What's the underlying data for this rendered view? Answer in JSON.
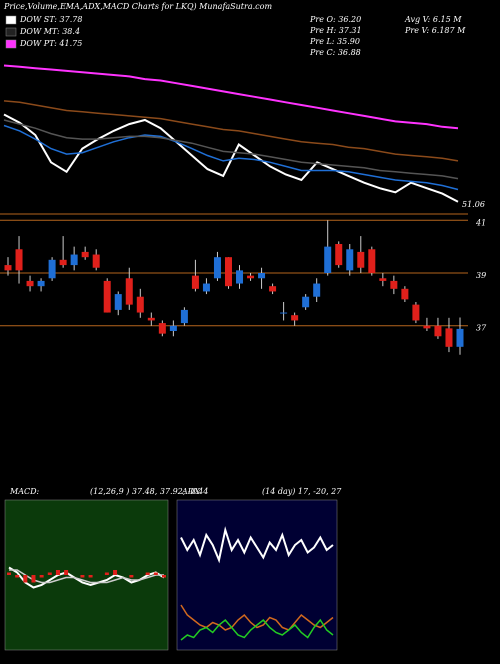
{
  "header": {
    "title": "Price,Volume,EMA,ADX,MACD Charts for LKQ) MunafaSutra.com",
    "legend": [
      {
        "text": "DOW ST: 37.78",
        "color": "#ffffff"
      },
      {
        "text": "DOW MT: 38.4",
        "color": "#222222"
      },
      {
        "text": "DOW PT: 41.75",
        "color": "#ff33ff"
      }
    ],
    "info": [
      "Pre O: 36.20",
      "Pre H: 37.31",
      "Pre L: 35.90",
      "Pre C: 36.88",
      "Avg V: 6.15 M",
      "Pre V: 6.187 M"
    ]
  },
  "chart_data": [
    {
      "type": "line",
      "ylim": [
        36,
        47
      ],
      "annotation": "51.06",
      "series": [
        {
          "name": "Price",
          "color": "#ffffff",
          "values": [
            43.0,
            42.4,
            41.5,
            39.5,
            38.8,
            40.5,
            41.2,
            41.8,
            42.3,
            42.6,
            42.0,
            41.0,
            40.0,
            39.0,
            38.5,
            40.8,
            40.0,
            39.2,
            38.6,
            38.2,
            39.5,
            39.0,
            38.5,
            38.0,
            37.6,
            37.3,
            38.0,
            37.6,
            37.2,
            36.6
          ]
        },
        {
          "name": "EMA short",
          "color": "#1f6fd6",
          "values": [
            42.2,
            41.8,
            41.2,
            40.5,
            40.1,
            40.2,
            40.6,
            41.0,
            41.3,
            41.5,
            41.4,
            41.0,
            40.5,
            40.0,
            39.6,
            39.8,
            39.7,
            39.5,
            39.2,
            38.9,
            38.9,
            38.9,
            38.8,
            38.6,
            38.4,
            38.2,
            38.1,
            38.0,
            37.8,
            37.5
          ]
        },
        {
          "name": "EMA mid",
          "color": "#555555",
          "values": [
            42.6,
            42.3,
            42.0,
            41.6,
            41.3,
            41.2,
            41.2,
            41.3,
            41.4,
            41.4,
            41.3,
            41.1,
            40.9,
            40.6,
            40.3,
            40.2,
            40.1,
            39.9,
            39.7,
            39.5,
            39.4,
            39.3,
            39.2,
            39.1,
            38.9,
            38.8,
            38.7,
            38.6,
            38.5,
            38.3
          ]
        },
        {
          "name": "EMA long",
          "color": "#8b4a1a",
          "values": [
            44.0,
            43.9,
            43.7,
            43.5,
            43.3,
            43.2,
            43.1,
            43.0,
            42.9,
            42.8,
            42.7,
            42.5,
            42.3,
            42.1,
            41.9,
            41.8,
            41.6,
            41.4,
            41.2,
            41.0,
            40.9,
            40.8,
            40.6,
            40.5,
            40.3,
            40.1,
            40.0,
            39.9,
            39.8,
            39.6
          ]
        },
        {
          "name": "EMA trend",
          "color": "#ff33ff",
          "values": [
            46.6,
            46.5,
            46.4,
            46.3,
            46.2,
            46.1,
            46.0,
            45.9,
            45.8,
            45.6,
            45.5,
            45.3,
            45.1,
            44.9,
            44.7,
            44.5,
            44.3,
            44.1,
            43.9,
            43.7,
            43.5,
            43.3,
            43.1,
            42.9,
            42.7,
            42.5,
            42.4,
            42.3,
            42.1,
            42.0
          ]
        }
      ]
    },
    {
      "type": "candlestick",
      "ylim": [
        35.7,
        41.2
      ],
      "yticks": [
        41,
        39,
        37
      ],
      "up_color": "#1f6fd6",
      "down_color": "#e0201b",
      "open": [
        39.3,
        39.9,
        38.7,
        38.5,
        38.8,
        39.5,
        39.3,
        39.8,
        39.7,
        38.7,
        37.6,
        38.8,
        38.1,
        37.3,
        37.1,
        36.8,
        37.1,
        38.9,
        38.3,
        38.8,
        39.6,
        38.6,
        38.9,
        38.8,
        38.5,
        37.5,
        37.4,
        37.7,
        38.1,
        39.0,
        40.1,
        39.1,
        39.8,
        39.9,
        38.8,
        38.7,
        38.4,
        37.8,
        37.0,
        37.0,
        36.9,
        36.2
      ],
      "high": [
        39.6,
        40.4,
        38.9,
        38.8,
        39.6,
        40.4,
        40.0,
        40.0,
        39.9,
        38.8,
        38.3,
        39.2,
        38.4,
        37.5,
        37.2,
        37.2,
        37.7,
        39.5,
        38.8,
        39.8,
        39.6,
        39.3,
        39.0,
        39.2,
        38.6,
        37.9,
        37.5,
        38.2,
        38.8,
        41.0,
        40.2,
        40.1,
        40.4,
        40.0,
        39.0,
        38.9,
        38.5,
        37.9,
        37.3,
        37.3,
        37.3,
        37.31
      ],
      "low": [
        38.9,
        38.6,
        38.3,
        38.3,
        38.7,
        39.2,
        39.1,
        39.5,
        39.1,
        37.5,
        37.4,
        37.6,
        37.3,
        37.0,
        36.6,
        36.6,
        37.0,
        38.3,
        38.2,
        38.7,
        38.4,
        38.4,
        38.7,
        38.4,
        38.2,
        37.2,
        37.0,
        37.6,
        37.9,
        38.9,
        39.2,
        38.9,
        39.0,
        38.9,
        38.5,
        38.2,
        37.9,
        37.1,
        36.8,
        36.5,
        36.0,
        35.9
      ],
      "close": [
        39.1,
        39.1,
        38.5,
        38.7,
        39.5,
        39.3,
        39.7,
        39.6,
        39.2,
        37.5,
        38.2,
        37.8,
        37.5,
        37.2,
        36.7,
        37.0,
        37.6,
        38.4,
        38.6,
        39.6,
        38.5,
        39.1,
        38.8,
        39.0,
        38.3,
        37.5,
        37.2,
        38.1,
        38.6,
        40.0,
        39.3,
        39.9,
        39.2,
        39.0,
        38.7,
        38.4,
        38.0,
        37.2,
        36.9,
        36.6,
        36.2,
        36.88
      ]
    },
    {
      "type": "line",
      "label": "MACD:",
      "params": "(12,26,9 ) 37.48, 37.92, -0.44",
      "background": "#0b3a0b",
      "ylim": [
        -3,
        3
      ],
      "series": [
        {
          "name": "MACD",
          "color": "#ffffff",
          "values": [
            0.3,
            0.1,
            -0.3,
            -0.5,
            -0.4,
            -0.2,
            0.0,
            0.1,
            -0.1,
            -0.3,
            -0.4,
            -0.3,
            -0.2,
            0.0,
            -0.1,
            -0.3,
            -0.2,
            0.0,
            0.1,
            -0.1
          ]
        },
        {
          "name": "Signal",
          "color": "#cccccc",
          "values": [
            0.2,
            0.2,
            0.0,
            -0.2,
            -0.3,
            -0.3,
            -0.2,
            -0.1,
            -0.1,
            -0.2,
            -0.3,
            -0.3,
            -0.3,
            -0.2,
            -0.1,
            -0.2,
            -0.2,
            -0.1,
            0.0,
            0.0
          ]
        },
        {
          "name": "Histogram",
          "color": "#e0201b",
          "bars": true,
          "values": [
            0.1,
            -0.1,
            -0.3,
            -0.3,
            -0.1,
            0.1,
            0.2,
            0.2,
            0.0,
            -0.1,
            -0.1,
            0.0,
            0.1,
            0.2,
            0.0,
            -0.1,
            0.0,
            0.1,
            0.1,
            -0.1
          ]
        }
      ]
    },
    {
      "type": "line",
      "label": "ADX",
      "params": "(14 day) 17, -20, 27",
      "background": "#000033",
      "ylim": [
        0,
        60
      ],
      "series": [
        {
          "name": "ADX",
          "color": "#ffffff",
          "values": [
            45,
            40,
            44,
            38,
            46,
            42,
            36,
            48,
            40,
            44,
            39,
            45,
            41,
            37,
            43,
            40,
            46,
            38,
            42,
            44,
            39,
            41,
            45,
            40,
            42
          ]
        },
        {
          "name": "DI+",
          "color": "#d2691e",
          "values": [
            18,
            14,
            12,
            10,
            9,
            11,
            10,
            8,
            9,
            12,
            14,
            11,
            9,
            10,
            13,
            12,
            9,
            8,
            11,
            14,
            12,
            10,
            9,
            11,
            13
          ]
        },
        {
          "name": "DI-",
          "color": "#22cc22",
          "values": [
            4,
            6,
            5,
            8,
            9,
            7,
            10,
            12,
            9,
            6,
            5,
            8,
            10,
            12,
            9,
            7,
            6,
            8,
            10,
            7,
            5,
            9,
            12,
            8,
            6
          ]
        }
      ]
    }
  ]
}
